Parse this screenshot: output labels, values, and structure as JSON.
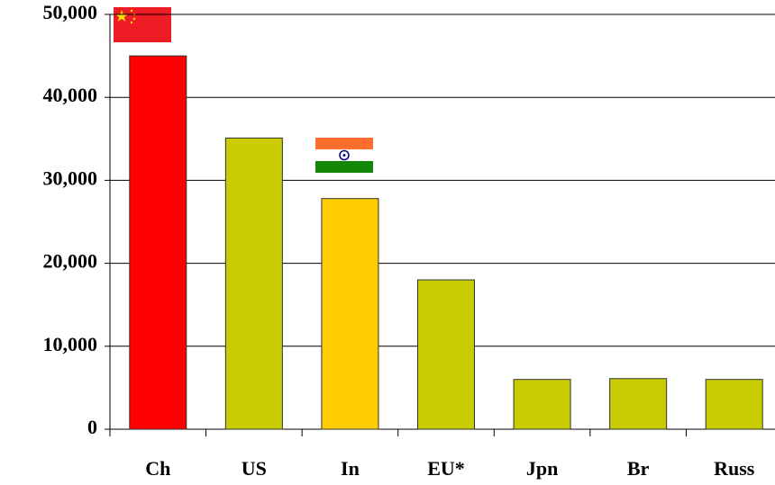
{
  "chart_data": {
    "type": "bar",
    "categories": [
      "Ch",
      "US",
      "In",
      "EU*",
      "Jpn",
      "Br",
      "Russ"
    ],
    "values": [
      45000,
      35100,
      27800,
      18000,
      6000,
      6100,
      6000
    ],
    "colors": [
      "#ff0000",
      "#c8cc00",
      "#ffcc00",
      "#c8cc00",
      "#c8cc00",
      "#c8cc00",
      "#c8cc00"
    ],
    "ylim": [
      0,
      50000
    ],
    "yticks": [
      0,
      {
        "value": 10000,
        "label": "10,000"
      },
      {
        "value": 20000,
        "label": "20,000"
      },
      {
        "value": 30000,
        "label": "30,000"
      },
      {
        "value": 40000,
        "label": "40,000"
      },
      {
        "value": 50000,
        "label": "50,000"
      }
    ],
    "grid": true
  }
}
